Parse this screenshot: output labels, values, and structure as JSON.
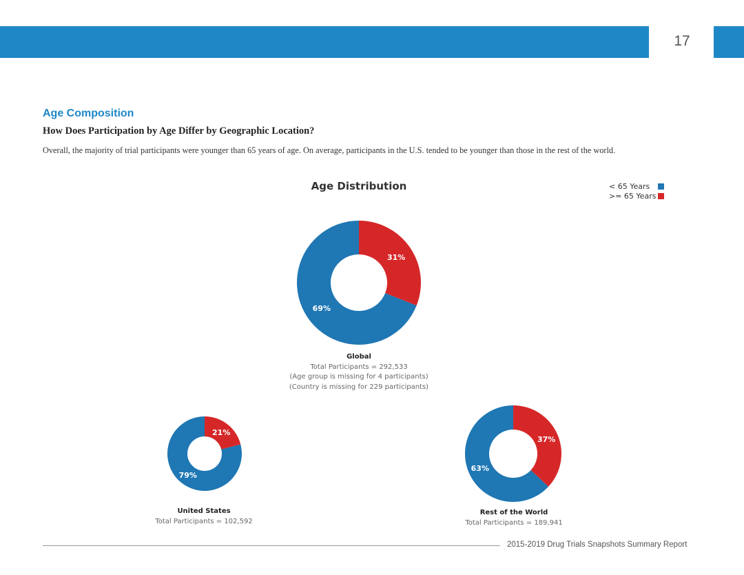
{
  "header": {
    "page_number": "17"
  },
  "section": {
    "title": "Age Composition",
    "question": "How Does Participation by Age Differ by Geographic Location?",
    "intro": "Overall, the majority of trial participants were younger than 65 years of age. On average, participants in the U.S. tended to be younger than those in the rest of the world."
  },
  "colors": {
    "under_65": "#1f77b4",
    "over_65": "#d62728",
    "accent": "#1e88c7"
  },
  "chart_data": {
    "type": "pie",
    "title": "Age Distribution",
    "legend": {
      "placement": "top-right",
      "entries": [
        "< 65 Years",
        ">= 65 Years"
      ]
    },
    "categories": [
      "< 65 Years",
      ">= 65 Years"
    ],
    "charts": [
      {
        "name": "Global",
        "values": [
          69,
          31
        ],
        "labels": [
          "69%",
          "31%"
        ],
        "lines": [
          "Total Participants = 292,533",
          "(Age group is missing for 4 participants)",
          "(Country is missing for 229 participants)"
        ]
      },
      {
        "name": "United States",
        "values": [
          79,
          21
        ],
        "labels": [
          "79%",
          "21%"
        ],
        "lines": [
          "Total Participants = 102,592"
        ]
      },
      {
        "name": "Rest of the World",
        "values": [
          63,
          37
        ],
        "labels": [
          "63%",
          "37%"
        ],
        "lines": [
          "Total Participants = 189,941"
        ]
      }
    ]
  },
  "footer": {
    "text": "2015-2019 Drug Trials Snapshots Summary Report"
  }
}
